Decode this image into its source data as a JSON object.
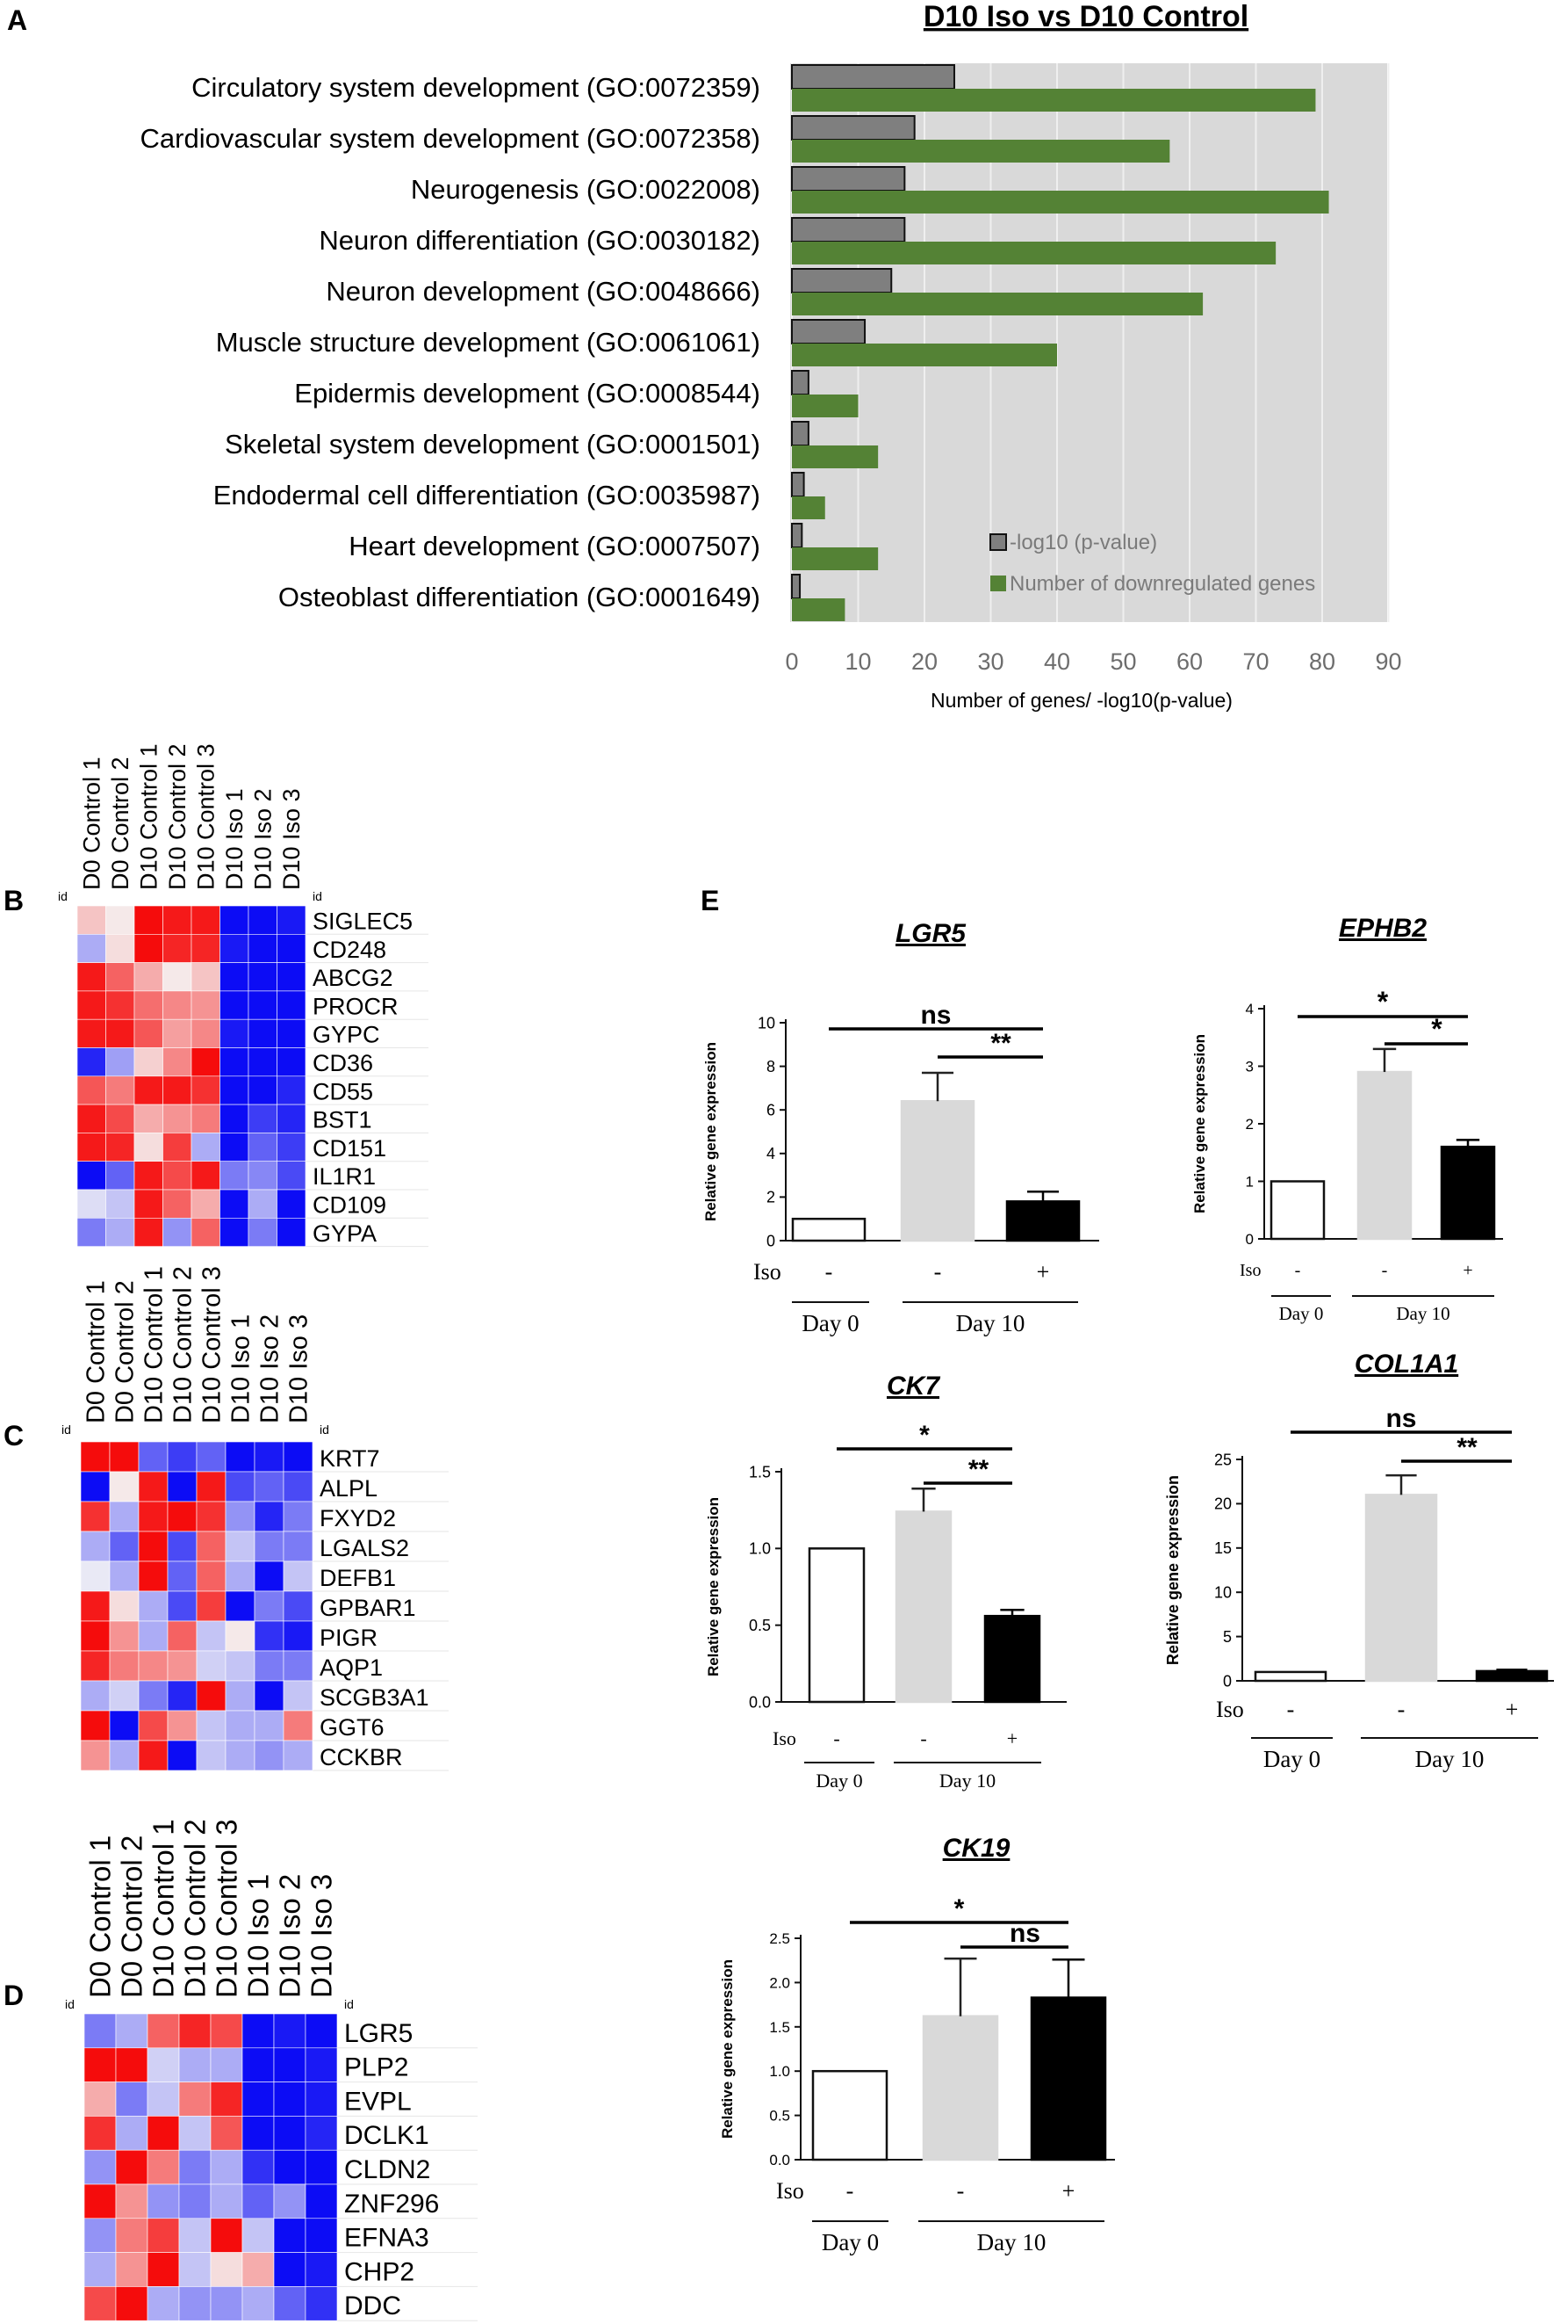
{
  "panels": {
    "A": "A",
    "B": "B",
    "C": "C",
    "D": "D",
    "E": "E"
  },
  "chart_data": [
    {
      "id": "A",
      "type": "bar",
      "orientation": "horizontal",
      "title": "D10 Iso vs D10 Control",
      "xlabel": "Number of genes/ -log10(p-value)",
      "xlim": [
        0,
        90
      ],
      "xticks": [
        0,
        10,
        20,
        30,
        40,
        50,
        60,
        70,
        80,
        90
      ],
      "grid": true,
      "legend_position": "bottom-right",
      "categories": [
        "Circulatory system development (GO:0072359)",
        "Cardiovascular system development (GO:0072358)",
        "Neurogenesis (GO:0022008)",
        "Neuron differentiation (GO:0030182)",
        "Neuron development (GO:0048666)",
        "Muscle structure development (GO:0061061)",
        "Epidermis development (GO:0008544)",
        "Skeletal system development (GO:0001501)",
        "Endodermal cell differentiation (GO:0035987)",
        "Heart development (GO:0007507)",
        "Osteoblast differentiation (GO:0001649)"
      ],
      "series": [
        {
          "name": "-log10 (p-value)",
          "color": "#7f7f7f",
          "values": [
            24.5,
            18.5,
            17,
            17,
            15,
            11,
            2.5,
            2.5,
            1.8,
            1.5,
            1.2
          ]
        },
        {
          "name": "Number of downregulated genes",
          "color": "#548235",
          "values": [
            79,
            57,
            81,
            73,
            62,
            40,
            10,
            13,
            5,
            13,
            8
          ]
        }
      ]
    },
    {
      "id": "B",
      "type": "heatmap",
      "columns": [
        "D0 Control 1",
        "D0 Control 2",
        "D10 Control 1",
        "D10 Control 2",
        "D10 Control 3",
        "D10 Iso 1",
        "D10 Iso 2",
        "D10 Iso 3"
      ],
      "id_label": "id",
      "rows": [
        "SIGLEC5",
        "CD248",
        "ABCG2",
        "PROCR",
        "GYPC",
        "CD36",
        "CD55",
        "BST1",
        "CD151",
        "IL1R1",
        "CD109",
        "GYPA"
      ],
      "values": [
        [
          0.2,
          0.05,
          0.95,
          0.9,
          0.9,
          -0.95,
          -0.95,
          -0.9
        ],
        [
          -0.3,
          0.1,
          0.95,
          0.85,
          0.85,
          -0.9,
          -0.95,
          -0.95
        ],
        [
          0.9,
          0.6,
          0.3,
          0.05,
          0.2,
          -0.95,
          -0.95,
          -0.95
        ],
        [
          0.9,
          0.8,
          0.55,
          0.45,
          0.4,
          -0.95,
          -0.95,
          -0.95
        ],
        [
          0.9,
          0.9,
          0.65,
          0.35,
          0.45,
          -0.9,
          -0.95,
          -0.95
        ],
        [
          -0.85,
          -0.35,
          0.15,
          0.45,
          0.95,
          -0.95,
          -0.95,
          -0.95
        ],
        [
          0.65,
          0.5,
          0.9,
          0.9,
          0.8,
          -0.95,
          -0.95,
          -0.85
        ],
        [
          0.9,
          0.7,
          0.3,
          0.4,
          0.5,
          -0.95,
          -0.75,
          -0.85
        ],
        [
          0.9,
          0.85,
          0.1,
          0.75,
          -0.3,
          -0.95,
          -0.6,
          -0.75
        ],
        [
          -0.95,
          -0.6,
          0.9,
          0.7,
          0.9,
          -0.5,
          -0.45,
          -0.7
        ],
        [
          -0.1,
          -0.2,
          0.9,
          0.6,
          0.3,
          -0.95,
          -0.3,
          -0.95
        ],
        [
          -0.5,
          -0.3,
          0.9,
          -0.4,
          0.6,
          -0.95,
          -0.5,
          -0.95
        ]
      ]
    },
    {
      "id": "C",
      "type": "heatmap",
      "columns": [
        "D0 Control 1",
        "D0 Control 2",
        "D10 Control 1",
        "D10 Control 2",
        "D10 Control 3",
        "D10 Iso 1",
        "D10 Iso 2",
        "D10 Iso 3"
      ],
      "id_label": "id",
      "rows": [
        "KRT7",
        "ALPL",
        "FXYD2",
        "LGALS2",
        "DEFB1",
        "GPBAR1",
        "PIGR",
        "AQP1",
        "SCGB3A1",
        "GGT6",
        "CCKBR"
      ],
      "values": [
        [
          0.95,
          0.95,
          -0.6,
          -0.75,
          -0.6,
          -0.95,
          -0.9,
          -0.95
        ],
        [
          -0.95,
          0.05,
          0.9,
          -0.95,
          0.9,
          -0.7,
          -0.6,
          -0.7
        ],
        [
          0.8,
          -0.3,
          0.9,
          0.95,
          0.8,
          -0.4,
          -0.85,
          -0.5
        ],
        [
          -0.3,
          -0.6,
          0.95,
          -0.7,
          0.6,
          -0.2,
          -0.5,
          -0.5
        ],
        [
          -0.05,
          -0.3,
          0.95,
          -0.6,
          0.6,
          -0.3,
          -0.95,
          -0.2
        ],
        [
          0.9,
          0.1,
          -0.3,
          -0.7,
          0.75,
          -0.95,
          -0.5,
          -0.7
        ],
        [
          0.95,
          0.4,
          -0.3,
          0.6,
          -0.2,
          0.05,
          -0.8,
          -0.9
        ],
        [
          0.85,
          0.5,
          0.45,
          0.4,
          -0.15,
          -0.2,
          -0.5,
          -0.5
        ],
        [
          -0.3,
          -0.15,
          -0.5,
          -0.85,
          0.95,
          -0.3,
          -0.95,
          -0.2
        ],
        [
          0.95,
          -0.95,
          0.7,
          0.4,
          -0.2,
          -0.3,
          -0.3,
          0.5
        ],
        [
          0.4,
          -0.3,
          0.9,
          -0.95,
          -0.2,
          -0.3,
          -0.4,
          -0.3
        ]
      ]
    },
    {
      "id": "D",
      "type": "heatmap",
      "columns": [
        "D0 Control 1",
        "D0 Control 2",
        "D10 Control 1",
        "D10 Control 2",
        "D10 Control 3",
        "D10 Iso 1",
        "D10 Iso 2",
        "D10 Iso 3"
      ],
      "id_label": "id",
      "rows": [
        "LGR5",
        "PLP2",
        "EVPL",
        "DCLK1",
        "CLDN2",
        "ZNF296",
        "EFNA3",
        "CHP2",
        "DDC"
      ],
      "values": [
        [
          -0.5,
          -0.3,
          0.6,
          0.85,
          0.7,
          -0.95,
          -0.9,
          -0.95
        ],
        [
          0.95,
          0.95,
          -0.15,
          -0.3,
          -0.3,
          -0.95,
          -0.95,
          -0.9
        ],
        [
          0.3,
          -0.5,
          -0.2,
          0.5,
          0.85,
          -0.95,
          -0.95,
          -0.9
        ],
        [
          0.8,
          -0.3,
          0.95,
          -0.2,
          0.65,
          -0.95,
          -0.95,
          -0.85
        ],
        [
          -0.4,
          0.95,
          0.5,
          -0.5,
          -0.3,
          -0.8,
          -0.95,
          -0.95
        ],
        [
          0.95,
          0.4,
          -0.4,
          -0.5,
          -0.3,
          -0.6,
          -0.4,
          -0.95
        ],
        [
          -0.4,
          0.5,
          0.75,
          -0.2,
          0.95,
          -0.2,
          -0.95,
          -0.95
        ],
        [
          -0.3,
          0.4,
          0.95,
          -0.2,
          0.1,
          0.3,
          -0.95,
          -0.9
        ],
        [
          0.7,
          0.95,
          -0.3,
          -0.4,
          -0.4,
          -0.3,
          -0.6,
          -0.8
        ]
      ]
    },
    {
      "id": "E-LGR5",
      "type": "bar",
      "title": "LGR5",
      "ylabel": "Relative gene expression",
      "ylim": [
        0,
        10
      ],
      "yticks": [
        0,
        2,
        4,
        6,
        8,
        10
      ],
      "categories": [
        "Day 0",
        "Day 10 -Iso",
        "Day 10 +Iso"
      ],
      "values": [
        1,
        6.4,
        1.8
      ],
      "errors": [
        0,
        1.3,
        0.45
      ],
      "iso_label": "Iso",
      "iso_marks": [
        "-",
        "-",
        "+"
      ],
      "groups": [
        "Day 0",
        "Day 10"
      ],
      "significance": [
        {
          "from": 0,
          "to": 2,
          "label": "ns"
        },
        {
          "from": 1,
          "to": 2,
          "label": "**"
        }
      ]
    },
    {
      "id": "E-EPHB2",
      "type": "bar",
      "title": "EPHB2",
      "ylabel": "Relative gene expression",
      "ylim": [
        0,
        4
      ],
      "yticks": [
        0,
        1,
        2,
        3,
        4
      ],
      "categories": [
        "Day 0",
        "Day 10 -Iso",
        "Day 10 +Iso"
      ],
      "values": [
        1,
        2.9,
        1.6
      ],
      "errors": [
        0,
        0.4,
        0.12
      ],
      "iso_label": "Iso",
      "iso_marks": [
        "-",
        "-",
        "+"
      ],
      "groups": [
        "Day 0",
        "Day 10"
      ],
      "significance": [
        {
          "from": 0,
          "to": 2,
          "label": "*"
        },
        {
          "from": 1,
          "to": 2,
          "label": "*"
        }
      ]
    },
    {
      "id": "E-CK7",
      "type": "bar",
      "title": "CK7",
      "ylabel": "Relative gene expression",
      "ylim": [
        0,
        1.5
      ],
      "yticks": [
        "0.0",
        "0.5",
        "1.0",
        "1.5"
      ],
      "categories": [
        "Day 0",
        "Day 10 -Iso",
        "Day 10 +Iso"
      ],
      "values": [
        1.0,
        1.24,
        0.56
      ],
      "errors": [
        0,
        0.15,
        0.04
      ],
      "iso_label": "Iso",
      "iso_marks": [
        "-",
        "-",
        "+"
      ],
      "groups": [
        "Day 0",
        "Day 10"
      ],
      "significance": [
        {
          "from": 0,
          "to": 2,
          "label": "*"
        },
        {
          "from": 1,
          "to": 2,
          "label": "**"
        }
      ]
    },
    {
      "id": "E-COL1A1",
      "type": "bar",
      "title": "COL1A1",
      "ylabel": "Relative gene expression",
      "ylim": [
        0,
        25
      ],
      "yticks": [
        0,
        5,
        10,
        15,
        20,
        25
      ],
      "categories": [
        "Day 0",
        "Day 10 -Iso",
        "Day 10 +Iso"
      ],
      "values": [
        1,
        21,
        1.1
      ],
      "errors": [
        0,
        2.2,
        0.15
      ],
      "iso_label": "Iso",
      "iso_marks": [
        "-",
        "-",
        "+"
      ],
      "groups": [
        "Day 0",
        "Day 10"
      ],
      "significance": [
        {
          "from": 0,
          "to": 2,
          "label": "ns"
        },
        {
          "from": 1,
          "to": 2,
          "label": "**"
        }
      ]
    },
    {
      "id": "E-CK19",
      "type": "bar",
      "title": "CK19",
      "ylabel": "Relative gene expression",
      "ylim": [
        0,
        2.5
      ],
      "yticks": [
        "0.0",
        "0.5",
        "1.0",
        "1.5",
        "2.0",
        "2.5"
      ],
      "categories": [
        "Day 0",
        "Day 10 -Iso",
        "Day 10 +Iso"
      ],
      "values": [
        1.0,
        1.62,
        1.83
      ],
      "errors": [
        0,
        0.65,
        0.43
      ],
      "iso_label": "Iso",
      "iso_marks": [
        "-",
        "-",
        "+"
      ],
      "groups": [
        "Day 0",
        "Day 10"
      ],
      "significance": [
        {
          "from": 0,
          "to": 2,
          "label": "*"
        },
        {
          "from": 1,
          "to": 2,
          "label": "ns"
        }
      ]
    }
  ]
}
